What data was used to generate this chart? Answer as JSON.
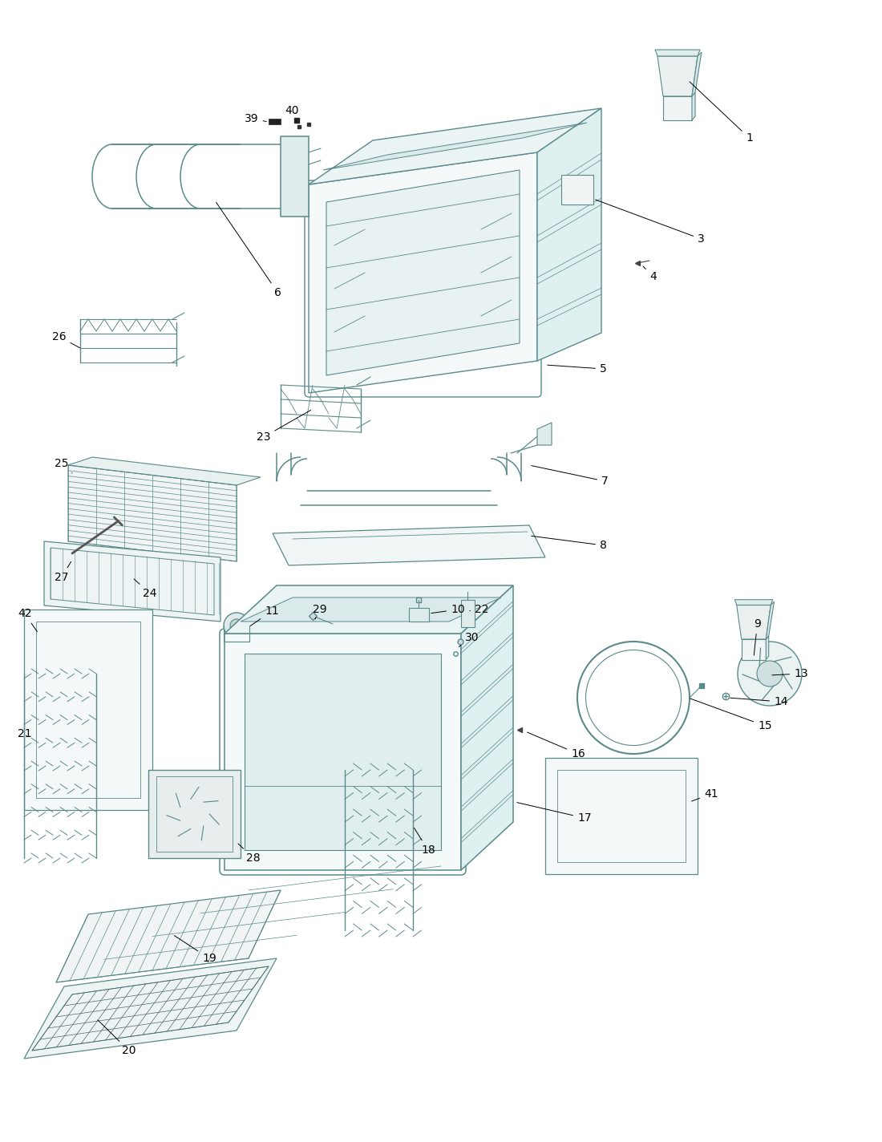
{
  "bg_color": "#ffffff",
  "line_color": "#5a8a8a",
  "dark_line": "#3a6060",
  "label_color": "#000000",
  "fig_width": 11.0,
  "fig_height": 14.24,
  "dpi": 100
}
